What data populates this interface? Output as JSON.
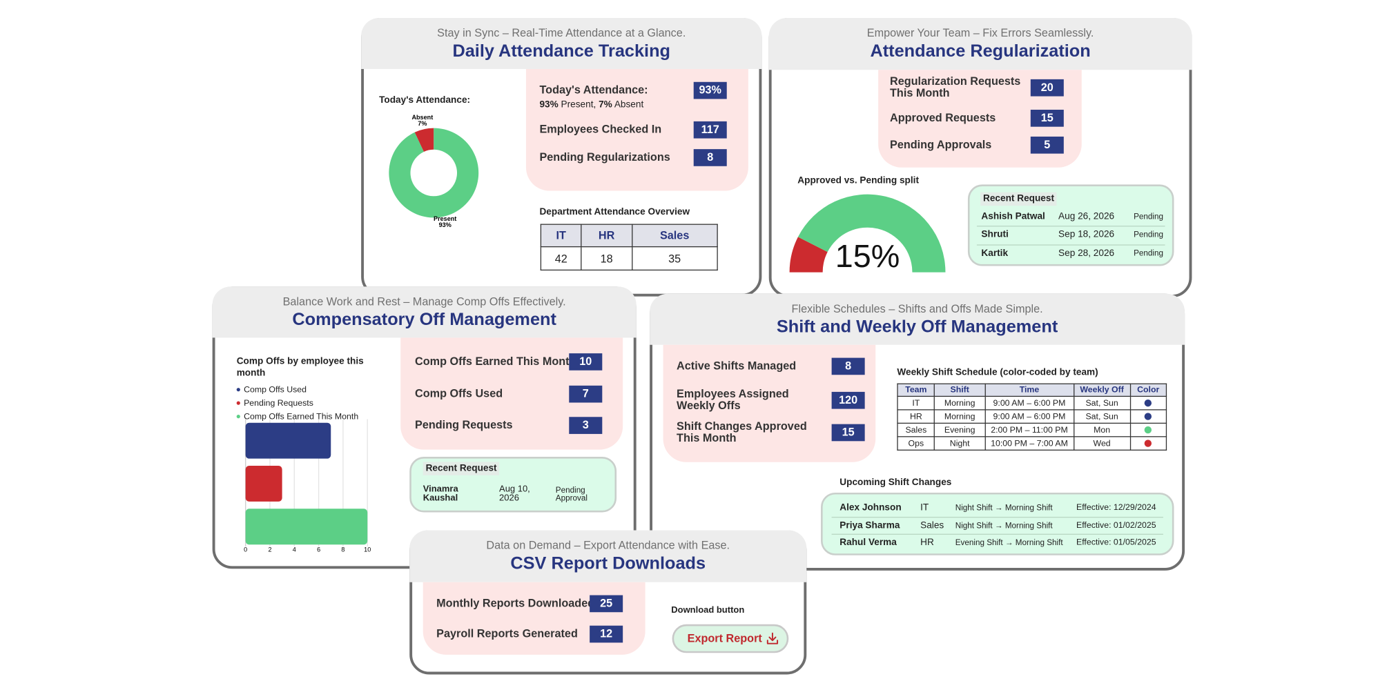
{
  "daily": {
    "subtitle": "Stay in Sync – Real-Time Attendance at a Glance.",
    "title": "Daily Attendance Tracking",
    "chart": {
      "type": "pie",
      "donut": true,
      "title": "Today's Attendance:",
      "categories": [
        "Absent",
        "Present"
      ],
      "values": [
        7,
        93
      ],
      "value_labels": [
        "7%",
        "93%"
      ],
      "colors": [
        "#cc2b2f",
        "#5ccf86"
      ]
    },
    "stats": [
      {
        "label": "Today's Attendance:",
        "value": "93%",
        "note": [
          "93%",
          " Present, ",
          "7%",
          " Absent"
        ]
      },
      {
        "label": "Employees Checked In",
        "value": 117
      },
      {
        "label": "Pending Regularizations",
        "value": 8
      }
    ],
    "table": {
      "title": "Department Attendance Overview",
      "headers": [
        "IT",
        "HR",
        "Sales"
      ],
      "rows": [
        [
          42,
          18,
          35
        ]
      ]
    }
  },
  "regularization": {
    "subtitle": "Empower Your Team – Fix Errors Seamlessly.",
    "title": "Attendance Regularization",
    "stats": [
      {
        "label": "Regularization Requests This Month",
        "value": 20
      },
      {
        "label": "Approved Requests",
        "value": 15
      },
      {
        "label": "Pending Approvals",
        "value": 5
      }
    ],
    "gauge": {
      "type": "gauge",
      "title": "Approved vs. Pending split",
      "value": 15,
      "value_label": "15%",
      "ylim": [
        0,
        100
      ],
      "colors": [
        "#cc2b2f",
        "#5ccf86"
      ]
    },
    "recent": {
      "title": "Recent Request",
      "rows": [
        [
          "Ashish Patwal",
          "Aug 26, 2026",
          "Pending"
        ],
        [
          "Shruti",
          "Sep 18, 2026",
          "Pending"
        ],
        [
          "Kartik",
          "Sep 28, 2026",
          "Pending"
        ]
      ]
    }
  },
  "comp": {
    "subtitle": "Balance Work and Rest – Manage Comp Offs Effectively.",
    "title": "Compensatory Off Management",
    "chart": {
      "type": "bar",
      "orientation": "horizontal",
      "title": "Comp Offs by employee this month",
      "categories": [
        null
      ],
      "series": [
        {
          "name": "Comp Offs Used",
          "color": "#2c3d85",
          "values": [
            7
          ]
        },
        {
          "name": "Pending Requests",
          "color": "#cc2b2f",
          "values": [
            3
          ]
        },
        {
          "name": "Comp Offs Earned This Month",
          "color": "#5ccf86",
          "values": [
            10
          ]
        }
      ],
      "xlim": [
        0,
        10
      ],
      "xticks": [
        0,
        2,
        4,
        6,
        8,
        10
      ],
      "grid": true
    },
    "stats": [
      {
        "label": "Comp Offs Earned This Month",
        "value": 10
      },
      {
        "label": "Comp Offs Used",
        "value": 7
      },
      {
        "label": "Pending Requests",
        "value": 3
      }
    ],
    "recent": {
      "title": "Recent Request",
      "rows": [
        [
          "Vinamra Kaushal",
          "Aug 10, 2026",
          "Pending Approval"
        ]
      ]
    }
  },
  "shift": {
    "subtitle": "Flexible Schedules – Shifts and Offs Made Simple.",
    "title": "Shift and Weekly Off Management",
    "stats": [
      {
        "label": "Active Shifts Managed",
        "value": 8
      },
      {
        "label": "Employees Assigned Weekly Offs",
        "value": 120
      },
      {
        "label": "Shift Changes Approved This Month",
        "value": 15
      }
    ],
    "schedule": {
      "title": "Weekly Shift Schedule (color-coded by team)",
      "headers": [
        "Team",
        "Shift",
        "Time",
        "Weekly Off",
        "Color"
      ],
      "rows": [
        [
          "IT",
          "Morning",
          "9:00 AM – 6:00 PM",
          "Sat, Sun",
          "#2c3d85"
        ],
        [
          "HR",
          "Morning",
          "9:00 AM – 6:00 PM",
          "Sat, Sun",
          "#2c3d85"
        ],
        [
          "Sales",
          "Evening",
          "2:00 PM – 11:00 PM",
          "Mon",
          "#5ccf86"
        ],
        [
          "Ops",
          "Night",
          "10:00 PM – 7:00 AM",
          "Wed",
          "#cc2b2f"
        ]
      ]
    },
    "upcoming": {
      "title": "Upcoming Shift Changes",
      "rows": [
        [
          "Alex Johnson",
          "IT",
          "Night Shift → Morning Shift",
          "Effective: 12/29/2024"
        ],
        [
          "Priya Sharma",
          "Sales",
          "Night Shift → Morning Shift",
          "Effective: 01/02/2025"
        ],
        [
          "Rahul Verma",
          "HR",
          "Evening Shift → Morning Shift",
          "Effective: 01/05/2025"
        ]
      ]
    }
  },
  "csv": {
    "subtitle": "Data on Demand – Export Attendance with Ease.",
    "title": "CSV Report Downloads",
    "stats": [
      {
        "label": "Monthly Reports Downloaded",
        "value": 25
      },
      {
        "label": "Payroll Reports Generated",
        "value": 12
      }
    ],
    "download_label": "Download button",
    "button": "Export Report"
  }
}
